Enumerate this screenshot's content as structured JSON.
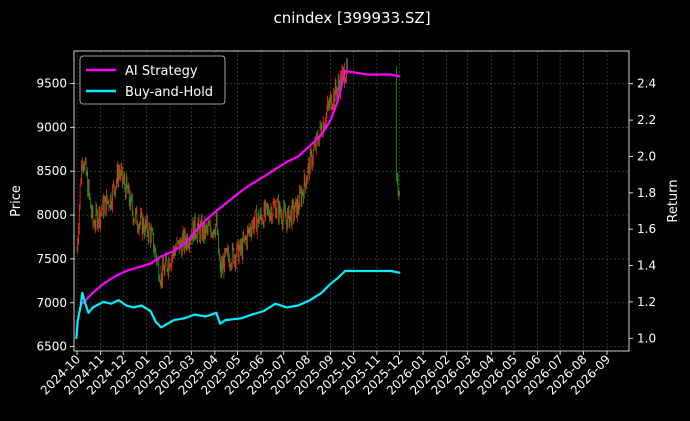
{
  "chart_data": {
    "type": "line",
    "title": "cnindex [399933.SZ]",
    "ylabel": "Price",
    "ylabel_right": "Return",
    "ylim": [
      6450,
      9870
    ],
    "ylim_right": [
      0.93,
      2.58
    ],
    "y_ticks": [
      6500,
      7000,
      7500,
      8000,
      8500,
      9000,
      9500
    ],
    "y_ticks_right": [
      1.0,
      1.2,
      1.4,
      1.6,
      1.8,
      2.0,
      2.2,
      2.4
    ],
    "x_ticks": [
      "2024-10",
      "2024-11",
      "2024-12",
      "2025-01",
      "2025-02",
      "2025-03",
      "2025-04",
      "2025-05",
      "2025-06",
      "2025-07",
      "2025-08",
      "2025-09",
      "2025-10",
      "2025-11",
      "2025-12",
      "2026-01",
      "2026-02",
      "2026-03",
      "2026-04",
      "2026-05",
      "2026-06",
      "2026-07",
      "2026-08",
      "2026-09"
    ],
    "x_tick_labels": [
      "2024-10",
      "2024-11",
      "2024-12",
      "2025-01",
      "2025-02",
      "2025-03",
      "2025-04",
      "2025-05",
      "2025-06",
      "2025-07",
      "2025-08",
      "2025-09",
      "2025-10",
      "2025-11",
      "2025-12",
      "2026-01",
      "2026-02",
      "2026-03",
      "2026-04",
      "2026-05",
      "2026-06",
      "2026-07",
      "2026-08",
      "2026-09"
    ],
    "grid": true,
    "legend_position": "top-left",
    "background": "#000000",
    "candle_up_color": "#ff2a1a",
    "candle_down_color": "#1f9e1f",
    "series": [
      {
        "name": "AI Strategy",
        "color": "#ff00ff",
        "axis": "right",
        "x": [
          "2024-10-08",
          "2024-10-22",
          "2024-11-05",
          "2024-11-20",
          "2024-12-05",
          "2024-12-20",
          "2025-01-06",
          "2025-01-20",
          "2025-02-06",
          "2025-02-20",
          "2025-03-05",
          "2025-03-20",
          "2025-04-03",
          "2025-04-18",
          "2025-05-06",
          "2025-05-20",
          "2025-06-05",
          "2025-06-20",
          "2025-07-05",
          "2025-07-20",
          "2025-08-05",
          "2025-08-20",
          "2025-09-01",
          "2025-09-10",
          "2025-09-20",
          "2025-10-20",
          "2025-11-20",
          "2025-12-01"
        ],
        "values": [
          1.19,
          1.25,
          1.3,
          1.34,
          1.37,
          1.39,
          1.41,
          1.45,
          1.48,
          1.52,
          1.58,
          1.65,
          1.7,
          1.75,
          1.81,
          1.85,
          1.89,
          1.93,
          1.97,
          2.0,
          2.06,
          2.12,
          2.2,
          2.3,
          2.47,
          2.45,
          2.45,
          2.44
        ]
      },
      {
        "name": "Buy-and-Hold",
        "color": "#00f0ff",
        "axis": "right",
        "x": [
          "2024-09-30",
          "2024-10-02",
          "2024-10-06",
          "2024-10-08",
          "2024-10-12",
          "2024-10-16",
          "2024-10-22",
          "2024-11-05",
          "2024-11-15",
          "2024-11-25",
          "2024-12-05",
          "2024-12-15",
          "2024-12-25",
          "2025-01-06",
          "2025-01-13",
          "2025-01-20",
          "2025-02-06",
          "2025-02-20",
          "2025-03-05",
          "2025-03-20",
          "2025-04-03",
          "2025-04-08",
          "2025-04-15",
          "2025-05-06",
          "2025-05-20",
          "2025-06-05",
          "2025-06-20",
          "2025-07-05",
          "2025-07-20",
          "2025-08-05",
          "2025-08-20",
          "2025-09-01",
          "2025-09-10",
          "2025-09-20",
          "2025-10-20",
          "2025-11-20",
          "2025-12-01"
        ],
        "values": [
          1.0,
          1.1,
          1.18,
          1.25,
          1.19,
          1.14,
          1.17,
          1.2,
          1.19,
          1.21,
          1.18,
          1.17,
          1.18,
          1.15,
          1.09,
          1.06,
          1.1,
          1.11,
          1.13,
          1.12,
          1.14,
          1.08,
          1.1,
          1.11,
          1.13,
          1.15,
          1.19,
          1.17,
          1.18,
          1.21,
          1.25,
          1.3,
          1.33,
          1.37,
          1.37,
          1.37,
          1.36
        ]
      },
      {
        "name": "Price (candles)",
        "color": "#ff2a1a",
        "axis": "left",
        "x": [
          "2024-10-01",
          "2024-10-05",
          "2024-10-08",
          "2024-10-14",
          "2024-10-22",
          "2024-11-05",
          "2024-11-15",
          "2024-11-25",
          "2024-12-05",
          "2024-12-15",
          "2024-12-25",
          "2025-01-06",
          "2025-01-13",
          "2025-01-20",
          "2025-02-06",
          "2025-02-20",
          "2025-03-05",
          "2025-03-20",
          "2025-04-03",
          "2025-04-08",
          "2025-04-15",
          "2025-05-06",
          "2025-05-20",
          "2025-06-05",
          "2025-06-20",
          "2025-07-05",
          "2025-07-20",
          "2025-08-05",
          "2025-08-20",
          "2025-09-01",
          "2025-09-10",
          "2025-09-20",
          "2025-11-28",
          "2025-12-01"
        ],
        "values": [
          7600,
          8300,
          8700,
          8400,
          7900,
          8100,
          8200,
          8500,
          8300,
          8000,
          7900,
          7800,
          7550,
          7300,
          7600,
          7700,
          7850,
          7800,
          7900,
          7350,
          7500,
          7600,
          7900,
          8000,
          8100,
          7950,
          8100,
          8600,
          9000,
          9300,
          9450,
          9650,
          8300,
          8350
        ]
      }
    ]
  }
}
